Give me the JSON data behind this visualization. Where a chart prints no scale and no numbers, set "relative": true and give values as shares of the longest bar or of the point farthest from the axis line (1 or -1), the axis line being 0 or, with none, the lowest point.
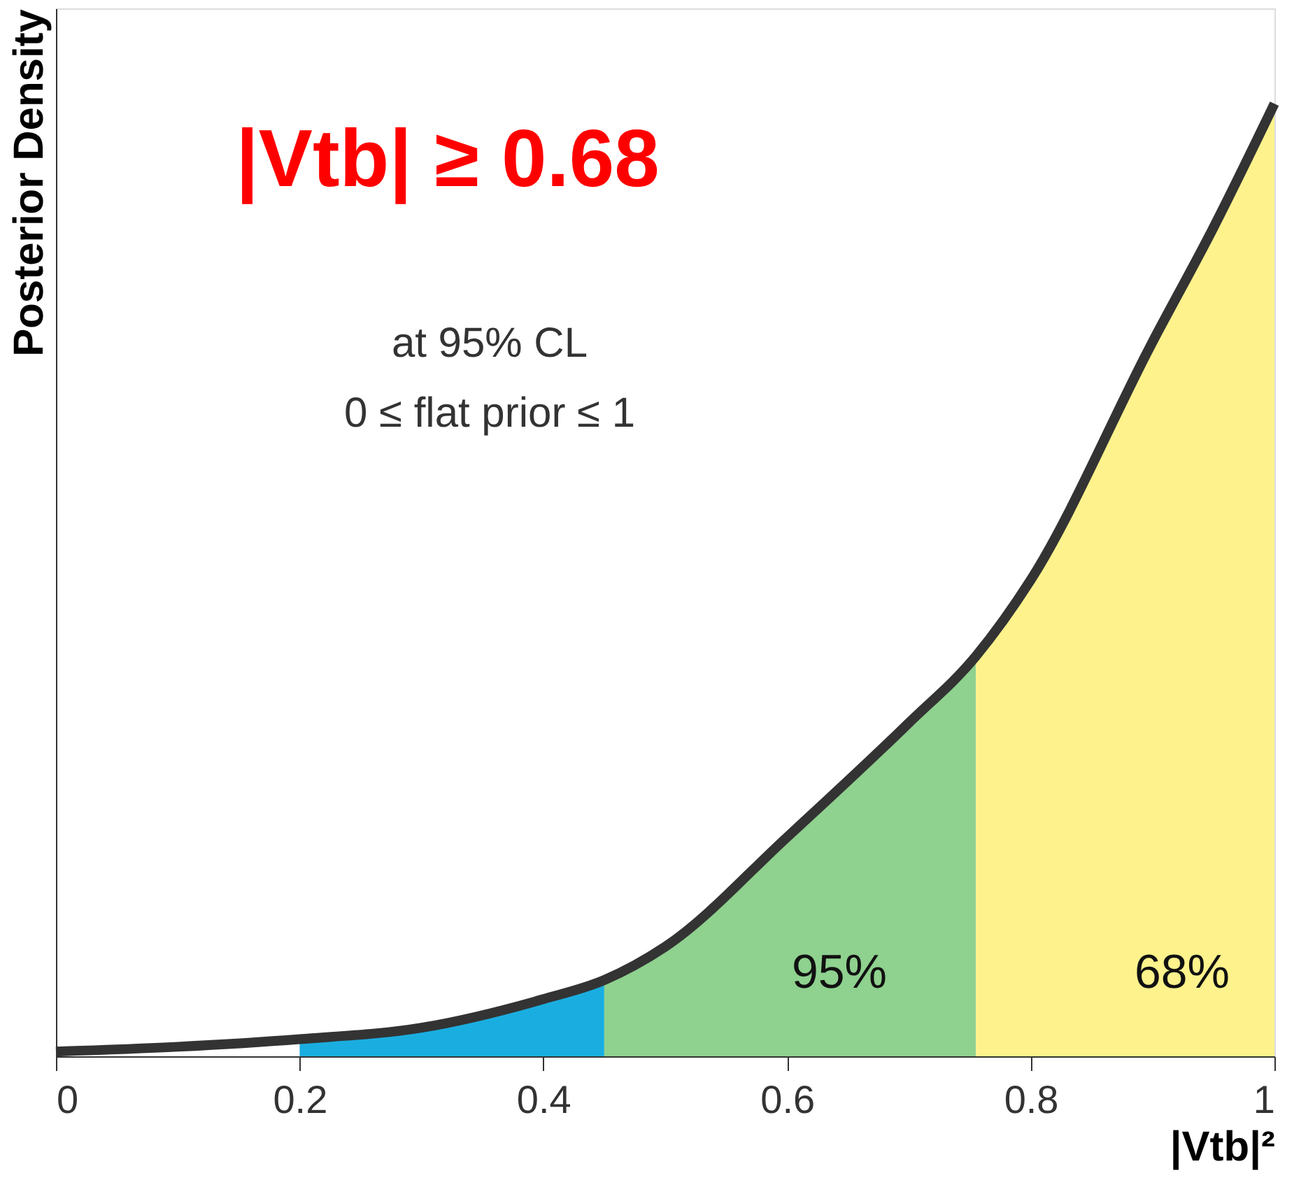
{
  "chart_data": {
    "type": "line",
    "relative": true,
    "xlabel": "|Vtb|²",
    "ylabel": "Posterior Density",
    "xlim": [
      0,
      1
    ],
    "xticks": [
      0,
      0.2,
      0.4,
      0.6,
      0.8,
      1
    ],
    "grid": false,
    "series": [
      {
        "type": "area",
        "color": "#1aaee0",
        "x": [
          0.2,
          0.3,
          0.4,
          0.45
        ],
        "values": [
          0.018,
          0.03,
          0.06,
          0.08
        ]
      },
      {
        "type": "area",
        "color": "#8fd18f",
        "x": [
          0.45,
          0.5,
          0.6,
          0.7,
          0.755
        ],
        "values": [
          0.08,
          0.115,
          0.23,
          0.35,
          0.42
        ]
      },
      {
        "type": "area",
        "color": "#fdf28c",
        "x": [
          0.755,
          0.8,
          0.9,
          0.95,
          1
        ],
        "values": [
          0.42,
          0.5,
          0.75,
          0.87,
          1
        ]
      },
      {
        "color": "#333333",
        "x": [
          0,
          0.1,
          0.2,
          0.3,
          0.4,
          0.45,
          0.5,
          0.6,
          0.7,
          0.755,
          0.8,
          0.9,
          0.95,
          1
        ],
        "values": [
          0.005,
          0.01,
          0.018,
          0.03,
          0.06,
          0.08,
          0.115,
          0.23,
          0.35,
          0.42,
          0.5,
          0.75,
          0.87,
          1
        ]
      }
    ],
    "annotations": [
      "|Vtb| ≥ 0.68",
      "at 95% CL",
      "0 ≤ flat prior ≤ 1",
      "95%",
      "68%"
    ]
  }
}
